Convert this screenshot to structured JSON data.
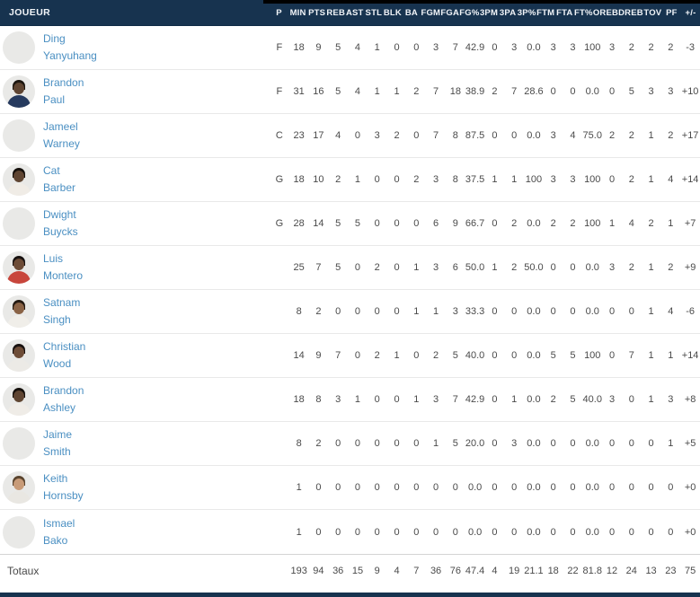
{
  "colors": {
    "header_bg": "#17334f",
    "bottom_bar": "#17334f",
    "top_strip": "#000000",
    "accent_link": "#4a8fc2",
    "stat_text": "#4a4a4a",
    "row_border": "#e9e9e9"
  },
  "table": {
    "header": {
      "player_label": "JOUEUR",
      "stat_labels": [
        "P",
        "MIN",
        "PTS",
        "REB",
        "AST",
        "STL",
        "BLK",
        "BA",
        "FGM",
        "FGA",
        "FG%",
        "3PM",
        "3PA",
        "3P%",
        "FTM",
        "FTA",
        "FT%",
        "OREB",
        "DREB",
        "TOV",
        "PF",
        "+/-"
      ]
    },
    "rows": [
      {
        "first": "Ding",
        "last": "Yanyuhang",
        "avatar": {
          "type": "placeholder"
        },
        "stats": [
          "F",
          "18",
          "9",
          "5",
          "4",
          "1",
          "0",
          "0",
          "3",
          "7",
          "42.9",
          "0",
          "3",
          "0.0",
          "3",
          "3",
          "100",
          "3",
          "2",
          "2",
          "2",
          "-3"
        ]
      },
      {
        "first": "Brandon",
        "last": "Paul",
        "avatar": {
          "type": "photo",
          "skin": "#5f4532",
          "hair": "#1d1710",
          "jersey": "#263a5e"
        },
        "stats": [
          "F",
          "31",
          "16",
          "5",
          "4",
          "1",
          "1",
          "2",
          "7",
          "18",
          "38.9",
          "2",
          "7",
          "28.6",
          "0",
          "0",
          "0.0",
          "0",
          "5",
          "3",
          "3",
          "+10"
        ]
      },
      {
        "first": "Jameel",
        "last": "Warney",
        "avatar": {
          "type": "placeholder"
        },
        "stats": [
          "C",
          "23",
          "17",
          "4",
          "0",
          "3",
          "2",
          "0",
          "7",
          "8",
          "87.5",
          "0",
          "0",
          "0.0",
          "3",
          "4",
          "75.0",
          "2",
          "2",
          "1",
          "2",
          "+17"
        ]
      },
      {
        "first": "Cat",
        "last": "Barber",
        "avatar": {
          "type": "photo",
          "skin": "#5f4532",
          "hair": "#15100c",
          "jersey": "#f0ece6"
        },
        "stats": [
          "G",
          "18",
          "10",
          "2",
          "1",
          "0",
          "0",
          "2",
          "3",
          "8",
          "37.5",
          "1",
          "1",
          "100",
          "3",
          "3",
          "100",
          "0",
          "2",
          "1",
          "4",
          "+14"
        ]
      },
      {
        "first": "Dwight",
        "last": "Buycks",
        "avatar": {
          "type": "placeholder"
        },
        "stats": [
          "G",
          "28",
          "14",
          "5",
          "5",
          "0",
          "0",
          "0",
          "6",
          "9",
          "66.7",
          "0",
          "2",
          "0.0",
          "2",
          "2",
          "100",
          "1",
          "4",
          "2",
          "1",
          "+7"
        ]
      },
      {
        "first": "Luis",
        "last": "Montero",
        "avatar": {
          "type": "photo",
          "skin": "#6d4c37",
          "hair": "#181210",
          "jersey": "#c8463c"
        },
        "stats": [
          "",
          "25",
          "7",
          "5",
          "0",
          "2",
          "0",
          "1",
          "3",
          "6",
          "50.0",
          "1",
          "2",
          "50.0",
          "0",
          "0",
          "0.0",
          "3",
          "2",
          "1",
          "2",
          "+9"
        ]
      },
      {
        "first": "Satnam",
        "last": "Singh",
        "avatar": {
          "type": "photo",
          "skin": "#8a6346",
          "hair": "#241a12",
          "jersey": "#f0eee9"
        },
        "stats": [
          "",
          "8",
          "2",
          "0",
          "0",
          "0",
          "0",
          "1",
          "1",
          "3",
          "33.3",
          "0",
          "0",
          "0.0",
          "0",
          "0",
          "0.0",
          "0",
          "0",
          "1",
          "4",
          "-6"
        ]
      },
      {
        "first": "Christian",
        "last": "Wood",
        "avatar": {
          "type": "photo",
          "skin": "#6d4c37",
          "hair": "#181210",
          "jersey": "#eceae6"
        },
        "stats": [
          "",
          "14",
          "9",
          "7",
          "0",
          "2",
          "1",
          "0",
          "2",
          "5",
          "40.0",
          "0",
          "0",
          "0.0",
          "5",
          "5",
          "100",
          "0",
          "7",
          "1",
          "1",
          "+14"
        ]
      },
      {
        "first": "Brandon",
        "last": "Ashley",
        "avatar": {
          "type": "photo",
          "skin": "#5f4532",
          "hair": "#15100c",
          "jersey": "#efece7"
        },
        "stats": [
          "",
          "18",
          "8",
          "3",
          "1",
          "0",
          "0",
          "1",
          "3",
          "7",
          "42.9",
          "0",
          "1",
          "0.0",
          "2",
          "5",
          "40.0",
          "3",
          "0",
          "1",
          "3",
          "+8"
        ]
      },
      {
        "first": "Jaime",
        "last": "Smith",
        "avatar": {
          "type": "placeholder"
        },
        "stats": [
          "",
          "8",
          "2",
          "0",
          "0",
          "0",
          "0",
          "0",
          "1",
          "5",
          "20.0",
          "0",
          "3",
          "0.0",
          "0",
          "0",
          "0.0",
          "0",
          "0",
          "0",
          "1",
          "+5"
        ]
      },
      {
        "first": "Keith",
        "last": "Hornsby",
        "avatar": {
          "type": "photo",
          "skin": "#c89b78",
          "hair": "#5a442e",
          "jersey": "#e9e7e2"
        },
        "stats": [
          "",
          "1",
          "0",
          "0",
          "0",
          "0",
          "0",
          "0",
          "0",
          "0",
          "0.0",
          "0",
          "0",
          "0.0",
          "0",
          "0",
          "0.0",
          "0",
          "0",
          "0",
          "0",
          "+0"
        ]
      },
      {
        "first": "Ismael",
        "last": "Bako",
        "avatar": {
          "type": "placeholder"
        },
        "stats": [
          "",
          "1",
          "0",
          "0",
          "0",
          "0",
          "0",
          "0",
          "0",
          "0",
          "0.0",
          "0",
          "0",
          "0.0",
          "0",
          "0",
          "0.0",
          "0",
          "0",
          "0",
          "0",
          "+0"
        ]
      }
    ],
    "totals": {
      "label": "Totaux",
      "stats": [
        "",
        "193",
        "94",
        "36",
        "15",
        "9",
        "4",
        "7",
        "36",
        "76",
        "47.4",
        "4",
        "19",
        "21.1",
        "18",
        "22",
        "81.8",
        "12",
        "24",
        "13",
        "23",
        "75"
      ]
    }
  }
}
